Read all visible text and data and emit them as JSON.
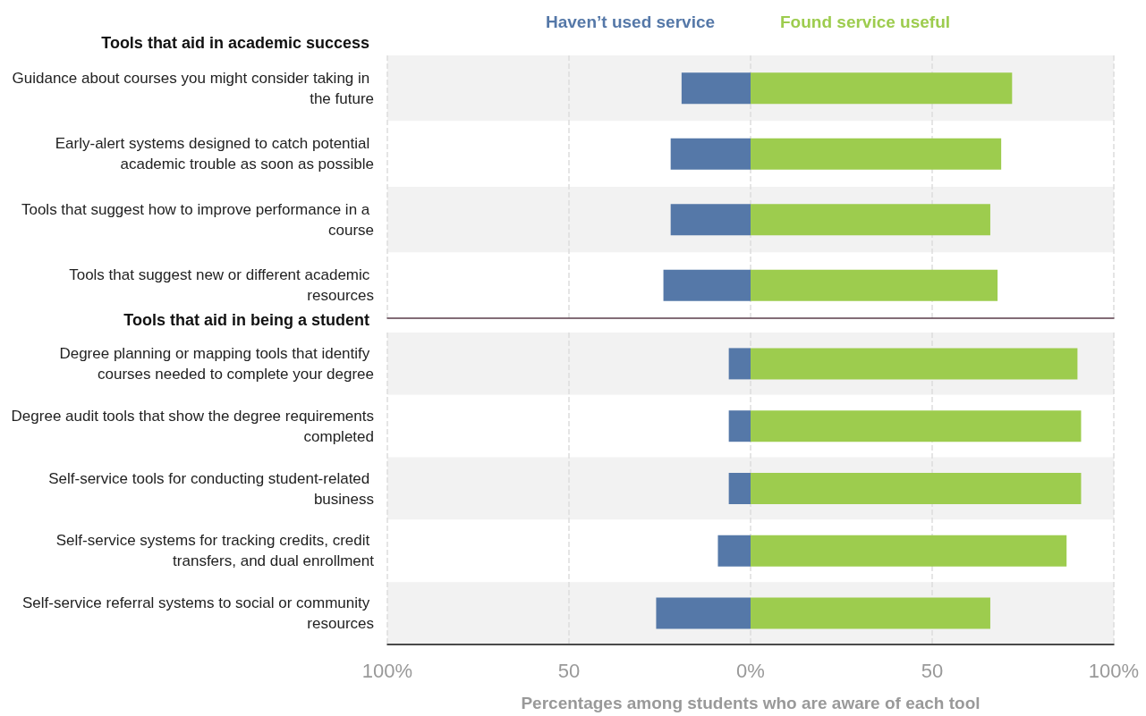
{
  "chart_data": [
    {
      "type": "bar",
      "orientation": "horizontal",
      "stacked": true,
      "title": "Tools that aid in academic success",
      "categories": [
        "Guidance about courses you might consider taking in the future",
        "Early-alert systems designed to catch potential academic trouble as soon as possible",
        "Tools that suggest how to improve performance in a course",
        "Tools that suggest new or different academic resources"
      ],
      "series": [
        {
          "name": "Haven’t used service",
          "color": "#5578a8",
          "values": [
            -19,
            -22,
            -22,
            -24
          ]
        },
        {
          "name": "Found service useful",
          "color": "#9dcc4e",
          "values": [
            72,
            69,
            66,
            68
          ]
        }
      ],
      "xlim": [
        -100,
        100
      ],
      "xticks": [
        {
          "value": -100,
          "label": null
        },
        {
          "value": -50,
          "label": null
        },
        {
          "value": 0,
          "label": null
        },
        {
          "value": 50,
          "label": null
        },
        {
          "value": 100,
          "label": null
        }
      ],
      "grid": "x",
      "tick_labels": "y",
      "legend": "top"
    },
    {
      "type": "bar",
      "orientation": "horizontal",
      "stacked": true,
      "title": "Tools that aid in being a student",
      "xlabel": "Percentages among students who are aware of each tool",
      "categories": [
        "Degree planning or mapping tools that identify courses needed to complete your degree",
        "Degree audit tools that show the degree requirements completed",
        "Self-service tools for conducting student-related business",
        "Self-service systems for tracking credits, credit transfers, and dual enrollment",
        "Self-service referral systems to social or community resources"
      ],
      "series": [
        {
          "color": "#5578a8",
          "values": [
            -6,
            -6,
            -6,
            -9,
            -26
          ]
        },
        {
          "color": "#9dcc4e",
          "values": [
            90,
            91,
            91,
            87,
            66
          ]
        }
      ],
      "xlim": [
        -100,
        100
      ],
      "xticks": [
        {
          "value": -100,
          "label": "100%"
        },
        {
          "value": -50,
          "label": "50"
        },
        {
          "value": 0,
          "label": "0%"
        },
        {
          "value": 50,
          "label": "50"
        },
        {
          "value": 100,
          "label": "100%"
        }
      ],
      "grid": "x",
      "legend": false
    }
  ]
}
